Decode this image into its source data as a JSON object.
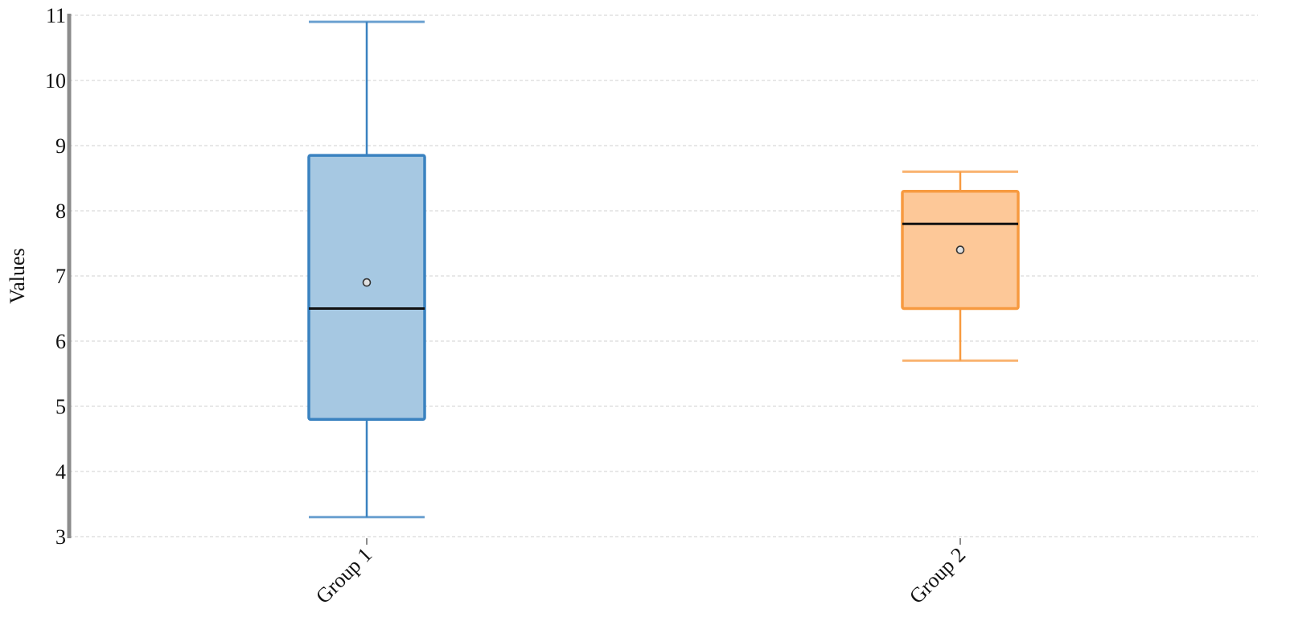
{
  "chart_data": {
    "type": "box",
    "ylabel": "Values",
    "ylim": [
      3,
      11
    ],
    "yticks": [
      3,
      4,
      5,
      6,
      7,
      8,
      9,
      10,
      11
    ],
    "grid": "horizontal-dashed",
    "categories": [
      "Group 1",
      "Group 2"
    ],
    "series": [
      {
        "whisker_low": 3.3,
        "q1": 4.8,
        "median": 6.5,
        "q3": 8.85,
        "whisker_high": 10.9,
        "mean": 6.9,
        "fill": "#a6c8e2",
        "stroke": "#3a82c0"
      },
      {
        "whisker_low": 5.7,
        "q1": 6.5,
        "median": 7.8,
        "q3": 8.3,
        "whisker_high": 8.6,
        "mean": 7.4,
        "fill": "#fdc898",
        "stroke": "#f79a40"
      }
    ]
  }
}
